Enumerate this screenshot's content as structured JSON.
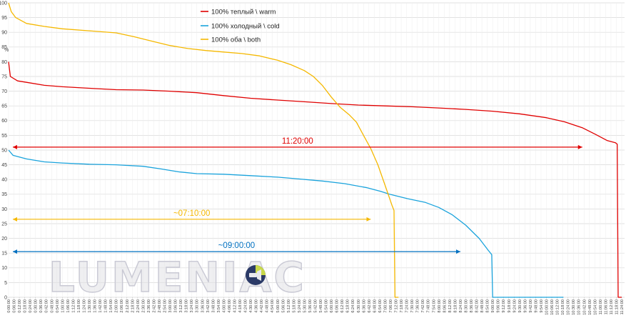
{
  "chart_data": {
    "type": "line",
    "y_unit_label": "%",
    "yticks": [
      0,
      5,
      10,
      15,
      20,
      25,
      30,
      35,
      40,
      45,
      50,
      55,
      60,
      65,
      70,
      75,
      80,
      85,
      90,
      95,
      100
    ],
    "ylim": [
      0,
      100
    ],
    "x_axis_format": "h:mm:ss",
    "x_tick_step_minutes": 6,
    "x_tick_first": "0:00:00",
    "x_tick_last": "11:24:00",
    "grid": true,
    "legend_position": "top-center",
    "series": [
      {
        "name": "100% теплый \\ warm",
        "color": "#e00000",
        "points": [
          [
            "0:00",
            80
          ],
          [
            "0:02",
            75
          ],
          [
            "0:10",
            73.5
          ],
          [
            "0:20",
            73
          ],
          [
            "0:40",
            72
          ],
          [
            "1:00",
            71.5
          ],
          [
            "1:30",
            71
          ],
          [
            "2:00",
            70.5
          ],
          [
            "2:30",
            70.4
          ],
          [
            "3:00",
            70
          ],
          [
            "3:30",
            69.5
          ],
          [
            "4:00",
            68.5
          ],
          [
            "4:30",
            67.6
          ],
          [
            "5:00",
            67
          ],
          [
            "5:30",
            66.4
          ],
          [
            "6:00",
            65.8
          ],
          [
            "6:30",
            65.3
          ],
          [
            "7:00",
            65
          ],
          [
            "7:30",
            64.7
          ],
          [
            "8:00",
            64.3
          ],
          [
            "8:30",
            63.8
          ],
          [
            "9:00",
            63.2
          ],
          [
            "9:30",
            62.3
          ],
          [
            "10:00",
            61
          ],
          [
            "10:20",
            59.6
          ],
          [
            "10:40",
            57.6
          ],
          [
            "10:55",
            55.3
          ],
          [
            "11:08",
            53.2
          ],
          [
            "11:17",
            52.5
          ],
          [
            "11:19",
            52
          ],
          [
            "11:20",
            0
          ],
          [
            "11:24",
            0
          ]
        ]
      },
      {
        "name": "100% холодный \\ cold",
        "color": "#1aa3dc",
        "points": [
          [
            "0:00",
            50
          ],
          [
            "0:05",
            48.2
          ],
          [
            "0:20",
            47
          ],
          [
            "0:40",
            46
          ],
          [
            "1:00",
            45.6
          ],
          [
            "1:30",
            45.2
          ],
          [
            "2:00",
            45
          ],
          [
            "2:30",
            44.5
          ],
          [
            "2:50",
            43.6
          ],
          [
            "3:10",
            42.6
          ],
          [
            "3:30",
            42
          ],
          [
            "4:00",
            41.8
          ],
          [
            "4:30",
            41.3
          ],
          [
            "5:00",
            40.8
          ],
          [
            "5:20",
            40.3
          ],
          [
            "5:50",
            39.5
          ],
          [
            "6:15",
            38.6
          ],
          [
            "6:40",
            37.2
          ],
          [
            "6:55",
            36
          ],
          [
            "7:05",
            35
          ],
          [
            "7:25",
            33.5
          ],
          [
            "7:45",
            32.2
          ],
          [
            "8:00",
            30.5
          ],
          [
            "8:15",
            28
          ],
          [
            "8:30",
            24.5
          ],
          [
            "8:45",
            20
          ],
          [
            "8:55",
            16
          ],
          [
            "8:59",
            14.5
          ],
          [
            "9:00",
            0
          ],
          [
            "10:19",
            0
          ]
        ]
      },
      {
        "name": "100% оба \\ both",
        "color": "#f5b800",
        "points": [
          [
            "0:00",
            100
          ],
          [
            "0:03",
            97
          ],
          [
            "0:08",
            95
          ],
          [
            "0:20",
            93
          ],
          [
            "0:40",
            92
          ],
          [
            "1:00",
            91.2
          ],
          [
            "1:30",
            90.5
          ],
          [
            "2:00",
            89.8
          ],
          [
            "2:20",
            88.5
          ],
          [
            "2:40",
            87
          ],
          [
            "3:00",
            85.5
          ],
          [
            "3:20",
            84.5
          ],
          [
            "3:40",
            83.8
          ],
          [
            "4:00",
            83.3
          ],
          [
            "4:20",
            82.8
          ],
          [
            "4:40",
            82
          ],
          [
            "5:00",
            80.5
          ],
          [
            "5:15",
            79
          ],
          [
            "5:30",
            77
          ],
          [
            "5:40",
            75
          ],
          [
            "5:50",
            72
          ],
          [
            "6:00",
            68
          ],
          [
            "6:10",
            64.5
          ],
          [
            "6:20",
            62
          ],
          [
            "6:28",
            59.5
          ],
          [
            "6:36",
            55
          ],
          [
            "6:44",
            50.5
          ],
          [
            "6:52",
            45
          ],
          [
            "7:00",
            38
          ],
          [
            "7:08",
            31
          ],
          [
            "7:10",
            29.5
          ],
          [
            "7:11",
            0
          ],
          [
            "7:15",
            0
          ]
        ]
      }
    ],
    "annotations": [
      {
        "text": "11:20:00",
        "color": "#e00000"
      },
      {
        "text": "~07:10:00",
        "color": "#f5b800"
      },
      {
        "text": "~09:00:00",
        "color": "#0070c0"
      }
    ]
  },
  "watermark": {
    "text": "LUMENIAC",
    "icon": "flashlight-logo-icon"
  }
}
